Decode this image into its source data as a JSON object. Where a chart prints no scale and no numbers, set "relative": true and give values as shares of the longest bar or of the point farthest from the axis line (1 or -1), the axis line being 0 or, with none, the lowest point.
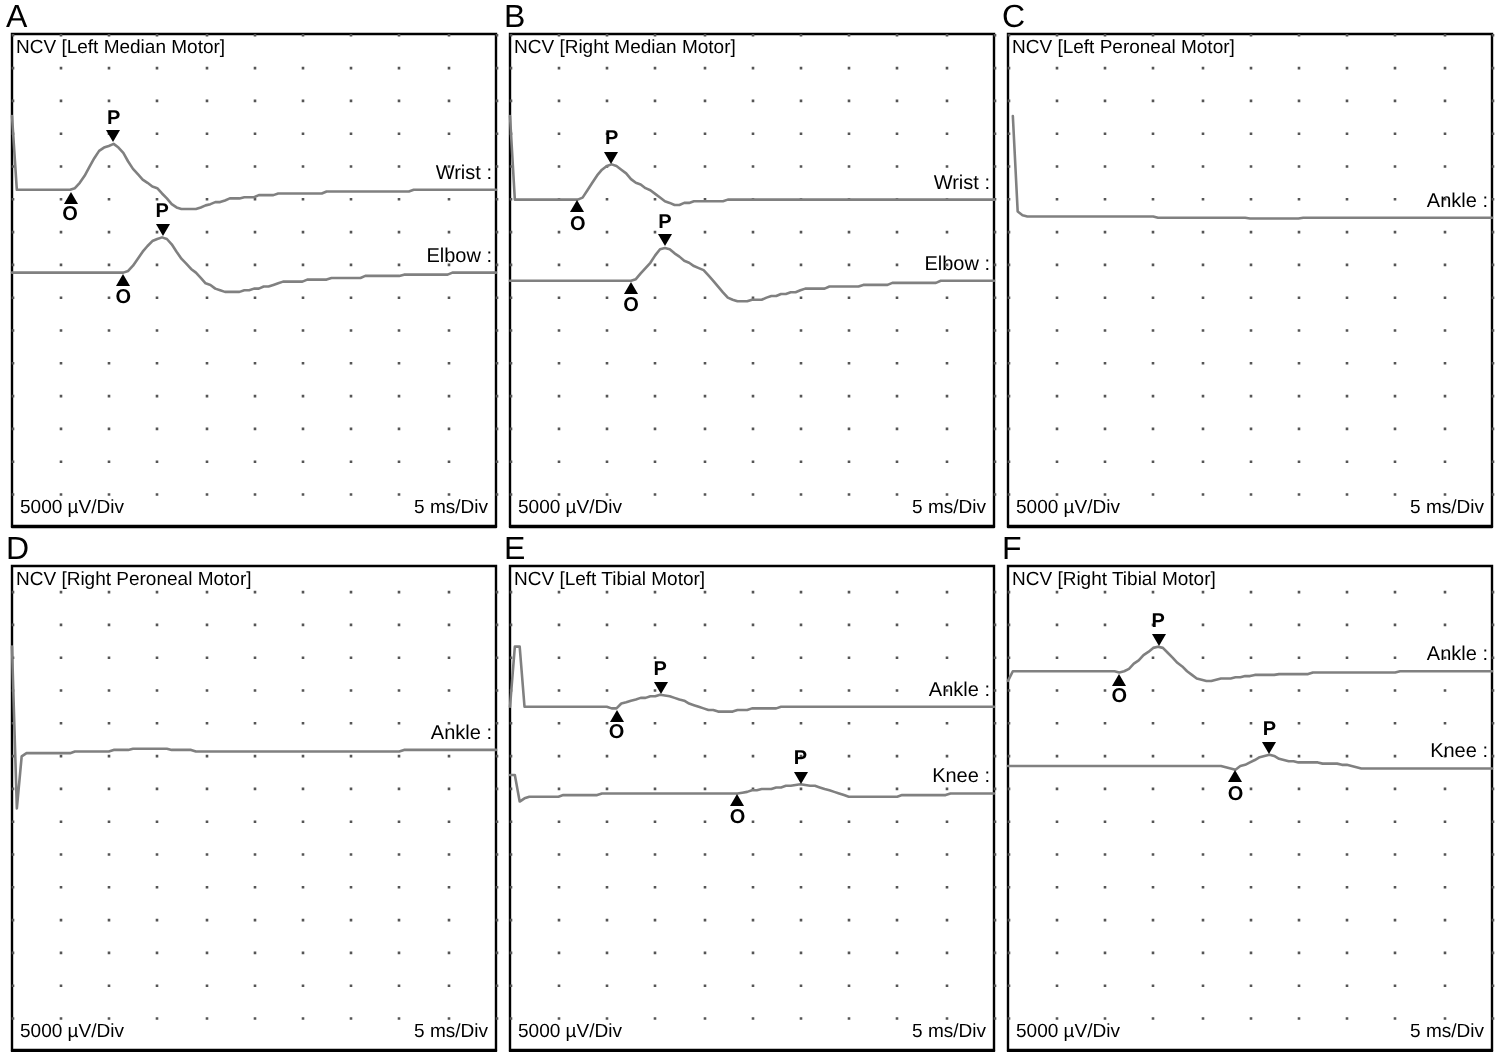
{
  "chart_data": [
    {
      "type": "line",
      "title": "A",
      "subtitle": "NCV [Left Median Motor]",
      "relative": true,
      "grid": true,
      "tick_labels": false,
      "categories": [
        null,
        null,
        null,
        null,
        null,
        null,
        null,
        null,
        null,
        null,
        null,
        null,
        null,
        null,
        null,
        null,
        null,
        null,
        null,
        null,
        null,
        null,
        null,
        null,
        null,
        null,
        null,
        null,
        null,
        null,
        null,
        null,
        null,
        null,
        null,
        null,
        null,
        null,
        null,
        null,
        null,
        null,
        null,
        null,
        null,
        null,
        null,
        null,
        null,
        null,
        null,
        null,
        null,
        null,
        null,
        null,
        null,
        null,
        null,
        null,
        null,
        null,
        null,
        null,
        null,
        null,
        null,
        null,
        null,
        null,
        null,
        null,
        null,
        null,
        null,
        null,
        null,
        null,
        null,
        null,
        null,
        null,
        null,
        null,
        null,
        null,
        null,
        null,
        null,
        null,
        null,
        null,
        null,
        null,
        null,
        null,
        null,
        null,
        null,
        null,
        null
      ],
      "series": [
        {
          "name": "Wrist :",
          "color": "#808080",
          "values": [
            1,
            0.82,
            0.82,
            0.82,
            0.82,
            0.82,
            0.82,
            0.82,
            0.82,
            0.82,
            0.82,
            0.82,
            0.82,
            0.824,
            0.837,
            0.854,
            0.876,
            0.897,
            0.915,
            0.923,
            0.927,
            0.932,
            0.923,
            0.91,
            0.889,
            0.871,
            0.858,
            0.845,
            0.837,
            0.828,
            0.824,
            0.811,
            0.799,
            0.785,
            0.777,
            0.773,
            0.773,
            0.773,
            0.773,
            0.777,
            0.782,
            0.785,
            0.79,
            0.79,
            0.794,
            0.799,
            0.799,
            0.799,
            0.802,
            0.802,
            0.802,
            0.807,
            0.807,
            0.807,
            0.807,
            0.811,
            0.811,
            0.811,
            0.811,
            0.811,
            0.811,
            0.811,
            0.811,
            0.811,
            0.811,
            0.816,
            0.816,
            0.816,
            0.816,
            0.816,
            0.816,
            0.816,
            0.816,
            0.816,
            0.816,
            0.816,
            0.816,
            0.816,
            0.816,
            0.816,
            0.816,
            0.816,
            0.816,
            0.82,
            0.82,
            0.82,
            0.82,
            0.82,
            0.82,
            0.82,
            0.82,
            0.82,
            0.82,
            0.82,
            0.82,
            0.82,
            0.82,
            0.82,
            0.82,
            0.82,
            0.82
          ]
        },
        {
          "name": "Elbow :",
          "color": "#808080",
          "values": [
            0.618,
            0.618,
            0.618,
            0.618,
            0.618,
            0.618,
            0.618,
            0.618,
            0.618,
            0.618,
            0.618,
            0.618,
            0.618,
            0.618,
            0.618,
            0.618,
            0.618,
            0.618,
            0.618,
            0.618,
            0.618,
            0.618,
            0.618,
            0.618,
            0.622,
            0.635,
            0.652,
            0.669,
            0.683,
            0.695,
            0.7,
            0.704,
            0.7,
            0.687,
            0.669,
            0.652,
            0.64,
            0.627,
            0.618,
            0.605,
            0.592,
            0.588,
            0.579,
            0.575,
            0.571,
            0.571,
            0.571,
            0.571,
            0.575,
            0.575,
            0.579,
            0.579,
            0.584,
            0.584,
            0.588,
            0.592,
            0.596,
            0.596,
            0.596,
            0.596,
            0.596,
            0.601,
            0.601,
            0.601,
            0.601,
            0.601,
            0.605,
            0.605,
            0.605,
            0.605,
            0.605,
            0.605,
            0.605,
            0.61,
            0.61,
            0.61,
            0.61,
            0.61,
            0.61,
            0.61,
            0.61,
            0.613,
            0.613,
            0.613,
            0.613,
            0.613,
            0.613,
            0.613,
            0.613,
            0.613,
            0.613,
            0.618,
            0.618,
            0.618,
            0.618,
            0.618,
            0.618,
            0.618,
            0.618,
            0.618,
            0.618
          ]
        }
      ],
      "annotations": [
        "5000 µV/Div",
        "5 ms/Div",
        {
          "text": "O",
          "y": 0.82
        },
        {
          "text": "P",
          "y": 0.932
        },
        {
          "text": "O",
          "y": 0.618
        },
        {
          "text": "P",
          "y": 0.704
        }
      ]
    },
    {
      "type": "line",
      "title": "B",
      "subtitle": "NCV [Right Median Motor]",
      "relative": true,
      "grid": true,
      "tick_labels": false,
      "categories": [
        null,
        null,
        null,
        null,
        null,
        null,
        null,
        null,
        null,
        null,
        null,
        null,
        null,
        null,
        null,
        null,
        null,
        null,
        null,
        null,
        null,
        null,
        null,
        null,
        null,
        null,
        null,
        null,
        null,
        null,
        null,
        null,
        null,
        null,
        null,
        null,
        null,
        null,
        null,
        null,
        null,
        null,
        null,
        null,
        null,
        null,
        null,
        null,
        null,
        null,
        null,
        null,
        null,
        null,
        null,
        null,
        null,
        null,
        null,
        null,
        null,
        null,
        null,
        null,
        null,
        null,
        null,
        null,
        null,
        null,
        null,
        null,
        null,
        null,
        null,
        null,
        null,
        null,
        null,
        null,
        null,
        null,
        null,
        null,
        null,
        null,
        null,
        null,
        null,
        null,
        null,
        null,
        null,
        null,
        null,
        null,
        null,
        null,
        null,
        null,
        null
      ],
      "series": [
        {
          "name": "Wrist :",
          "color": "#808080",
          "values": [
            1,
            0.796,
            0.796,
            0.796,
            0.796,
            0.796,
            0.796,
            0.796,
            0.796,
            0.796,
            0.796,
            0.796,
            0.796,
            0.796,
            0.796,
            0.801,
            0.819,
            0.837,
            0.855,
            0.869,
            0.878,
            0.882,
            0.878,
            0.869,
            0.86,
            0.846,
            0.837,
            0.833,
            0.824,
            0.819,
            0.81,
            0.801,
            0.792,
            0.788,
            0.783,
            0.783,
            0.788,
            0.788,
            0.792,
            0.792,
            0.792,
            0.792,
            0.792,
            0.792,
            0.792,
            0.796,
            0.796,
            0.796,
            0.796,
            0.796,
            0.796,
            0.796,
            0.796,
            0.796,
            0.796,
            0.796,
            0.796,
            0.796,
            0.796,
            0.796,
            0.796,
            0.796,
            0.796,
            0.796,
            0.796,
            0.796,
            0.796,
            0.796,
            0.796,
            0.796,
            0.796,
            0.796,
            0.796,
            0.796,
            0.796,
            0.796,
            0.796,
            0.796,
            0.796,
            0.796,
            0.796,
            0.796,
            0.796,
            0.796,
            0.796,
            0.796,
            0.796,
            0.796,
            0.796,
            0.796,
            0.796,
            0.796,
            0.796,
            0.796,
            0.796,
            0.796,
            0.796,
            0.796,
            0.796,
            0.796,
            0.796
          ]
        },
        {
          "name": "Elbow :",
          "color": "#808080",
          "values": [
            0.598,
            0.598,
            0.598,
            0.598,
            0.598,
            0.598,
            0.598,
            0.598,
            0.598,
            0.598,
            0.598,
            0.598,
            0.598,
            0.598,
            0.598,
            0.598,
            0.598,
            0.598,
            0.598,
            0.598,
            0.598,
            0.598,
            0.598,
            0.598,
            0.598,
            0.598,
            0.602,
            0.616,
            0.629,
            0.642,
            0.66,
            0.675,
            0.678,
            0.675,
            0.665,
            0.657,
            0.647,
            0.642,
            0.634,
            0.629,
            0.624,
            0.611,
            0.598,
            0.584,
            0.57,
            0.557,
            0.552,
            0.548,
            0.548,
            0.548,
            0.552,
            0.552,
            0.552,
            0.557,
            0.561,
            0.561,
            0.566,
            0.566,
            0.57,
            0.57,
            0.575,
            0.579,
            0.579,
            0.579,
            0.579,
            0.579,
            0.584,
            0.584,
            0.584,
            0.584,
            0.584,
            0.584,
            0.584,
            0.588,
            0.588,
            0.588,
            0.588,
            0.588,
            0.588,
            0.593,
            0.593,
            0.593,
            0.593,
            0.593,
            0.593,
            0.593,
            0.593,
            0.593,
            0.593,
            0.598,
            0.598,
            0.598,
            0.598,
            0.598,
            0.598,
            0.598,
            0.598,
            0.598,
            0.598,
            0.598,
            0.598
          ]
        }
      ],
      "annotations": [
        "5000 µV/Div",
        "5 ms/Div",
        {
          "text": "O",
          "y": 0.796
        },
        {
          "text": "P",
          "y": 0.882
        },
        {
          "text": "O",
          "y": 0.598
        },
        {
          "text": "P",
          "y": 0.678
        }
      ]
    },
    {
      "type": "line",
      "title": "C",
      "subtitle": "NCV [Left Peroneal Motor]",
      "relative": true,
      "grid": true,
      "tick_labels": false,
      "categories": [
        null,
        null,
        null,
        null,
        null,
        null,
        null,
        null,
        null,
        null,
        null,
        null,
        null,
        null,
        null,
        null,
        null,
        null,
        null,
        null,
        null,
        null,
        null,
        null,
        null,
        null,
        null,
        null,
        null,
        null,
        null,
        null,
        null,
        null,
        null,
        null,
        null,
        null,
        null,
        null,
        null,
        null,
        null,
        null,
        null,
        null,
        null,
        null,
        null,
        null,
        null,
        null,
        null,
        null,
        null,
        null,
        null,
        null,
        null,
        null,
        null,
        null,
        null,
        null,
        null,
        null,
        null,
        null,
        null,
        null,
        null,
        null,
        null,
        null,
        null,
        null,
        null,
        null,
        null,
        null,
        null,
        null,
        null,
        null,
        null,
        null,
        null,
        null,
        null,
        null,
        null,
        null,
        null,
        null,
        null,
        null,
        null,
        null,
        null,
        null,
        null
      ],
      "series": [
        {
          "name": "Ankle :",
          "color": "#808080",
          "values": [
            null,
            1,
            0.767,
            0.758,
            0.755,
            0.755,
            0.755,
            0.755,
            0.755,
            0.755,
            0.755,
            0.755,
            0.755,
            0.755,
            0.755,
            0.755,
            0.755,
            0.755,
            0.755,
            0.755,
            0.755,
            0.755,
            0.755,
            0.755,
            0.755,
            0.755,
            0.755,
            0.755,
            0.755,
            0.755,
            0.755,
            0.752,
            0.752,
            0.752,
            0.752,
            0.752,
            0.752,
            0.752,
            0.752,
            0.752,
            0.752,
            0.752,
            0.752,
            0.752,
            0.752,
            0.752,
            0.752,
            0.752,
            0.752,
            0.752,
            0.75,
            0.75,
            0.75,
            0.75,
            0.75,
            0.75,
            0.75,
            0.75,
            0.75,
            0.75,
            0.75,
            0.752,
            0.752,
            0.752,
            0.752,
            0.752,
            0.752,
            0.752,
            0.752,
            0.752,
            0.752,
            0.752,
            0.752,
            0.752,
            0.752,
            0.752,
            0.752,
            0.752,
            0.752,
            0.752,
            0.752,
            0.752,
            0.752,
            0.752,
            0.752,
            0.752,
            0.752,
            0.752,
            0.752,
            0.752,
            0.752,
            0.752,
            0.752,
            0.752,
            0.752,
            0.752,
            0.752,
            0.752,
            0.752,
            0.752,
            0.752
          ]
        }
      ],
      "annotations": [
        "5000 µV/Div",
        "5 ms/Div"
      ]
    },
    {
      "type": "line",
      "title": "D",
      "subtitle": "NCV [Right Peroneal Motor]",
      "relative": true,
      "grid": true,
      "tick_labels": false,
      "categories": [
        null,
        null,
        null,
        null,
        null,
        null,
        null,
        null,
        null,
        null,
        null,
        null,
        null,
        null,
        null,
        null,
        null,
        null,
        null,
        null,
        null,
        null,
        null,
        null,
        null,
        null,
        null,
        null,
        null,
        null,
        null,
        null,
        null,
        null,
        null,
        null,
        null,
        null,
        null,
        null,
        null,
        null,
        null,
        null,
        null,
        null,
        null,
        null,
        null,
        null,
        null,
        null,
        null,
        null,
        null,
        null,
        null,
        null,
        null,
        null,
        null,
        null,
        null,
        null,
        null,
        null,
        null,
        null,
        null,
        null,
        null,
        null,
        null,
        null,
        null,
        null,
        null,
        null,
        null,
        null,
        null,
        null,
        null,
        null,
        null,
        null,
        null,
        null,
        null,
        null,
        null,
        null,
        null,
        null,
        null,
        null,
        null,
        null,
        null,
        null,
        null
      ],
      "series": [
        {
          "name": "Ankle :",
          "color": "#808080",
          "values": [
            1,
            0.599,
            0.728,
            0.736,
            0.736,
            0.736,
            0.736,
            0.736,
            0.736,
            0.736,
            0.736,
            0.736,
            0.736,
            0.74,
            0.74,
            0.74,
            0.74,
            0.74,
            0.74,
            0.74,
            0.74,
            0.744,
            0.744,
            0.744,
            0.744,
            0.747,
            0.747,
            0.747,
            0.747,
            0.747,
            0.747,
            0.747,
            0.747,
            0.744,
            0.744,
            0.744,
            0.744,
            0.744,
            0.74,
            0.74,
            0.74,
            0.74,
            0.74,
            0.74,
            0.74,
            0.74,
            0.74,
            0.74,
            0.74,
            0.74,
            0.74,
            0.74,
            0.74,
            0.74,
            0.74,
            0.74,
            0.74,
            0.74,
            0.74,
            0.74,
            0.74,
            0.74,
            0.74,
            0.74,
            0.74,
            0.74,
            0.74,
            0.74,
            0.74,
            0.74,
            0.74,
            0.74,
            0.74,
            0.74,
            0.74,
            0.74,
            0.74,
            0.74,
            0.74,
            0.74,
            0.74,
            0.744,
            0.744,
            0.744,
            0.744,
            0.744,
            0.744,
            0.744,
            0.744,
            0.744,
            0.744,
            0.744,
            0.744,
            0.744,
            0.744,
            0.744,
            0.744,
            0.744,
            0.744,
            0.744,
            0.744
          ]
        }
      ],
      "annotations": [
        "5000 µV/Div",
        "5 ms/Div"
      ]
    },
    {
      "type": "line",
      "title": "E",
      "subtitle": "NCV [Left Tibial Motor]",
      "relative": true,
      "grid": true,
      "tick_labels": false,
      "categories": [
        null,
        null,
        null,
        null,
        null,
        null,
        null,
        null,
        null,
        null,
        null,
        null,
        null,
        null,
        null,
        null,
        null,
        null,
        null,
        null,
        null,
        null,
        null,
        null,
        null,
        null,
        null,
        null,
        null,
        null,
        null,
        null,
        null,
        null,
        null,
        null,
        null,
        null,
        null,
        null,
        null,
        null,
        null,
        null,
        null,
        null,
        null,
        null,
        null,
        null,
        null,
        null,
        null,
        null,
        null,
        null,
        null,
        null,
        null,
        null,
        null,
        null,
        null,
        null,
        null,
        null,
        null,
        null,
        null,
        null,
        null,
        null,
        null,
        null,
        null,
        null,
        null,
        null,
        null,
        null,
        null,
        null,
        null,
        null,
        null,
        null,
        null,
        null,
        null,
        null,
        null,
        null,
        null,
        null,
        null,
        null,
        null,
        null,
        null,
        null,
        null
      ],
      "series": [
        {
          "name": "Ankle :",
          "color": "#808080",
          "values": [
            0.851,
            1,
            1,
            0.851,
            0.851,
            0.851,
            0.851,
            0.851,
            0.851,
            0.851,
            0.851,
            0.851,
            0.851,
            0.851,
            0.851,
            0.851,
            0.851,
            0.851,
            0.851,
            0.851,
            0.851,
            0.847,
            0.847,
            0.859,
            0.862,
            0.866,
            0.869,
            0.873,
            0.873,
            0.877,
            0.877,
            0.881,
            0.879,
            0.877,
            0.873,
            0.869,
            0.866,
            0.859,
            0.855,
            0.851,
            0.847,
            0.843,
            0.843,
            0.839,
            0.839,
            0.839,
            0.839,
            0.843,
            0.843,
            0.843,
            0.847,
            0.847,
            0.847,
            0.847,
            0.847,
            0.847,
            0.851,
            0.851,
            0.851,
            0.851,
            0.851,
            0.851,
            0.851,
            0.851,
            0.851,
            0.851,
            0.851,
            0.851,
            0.851,
            0.851,
            0.851,
            0.851,
            0.851,
            0.851,
            0.851,
            0.851,
            0.851,
            0.851,
            0.851,
            0.851,
            0.851,
            0.851,
            0.851,
            0.851,
            0.851,
            0.851,
            0.851,
            0.851,
            0.851,
            0.851,
            0.851,
            0.851,
            0.851,
            0.851,
            0.851,
            0.851,
            0.851,
            0.851,
            0.851,
            0.851,
            0.851
          ]
        },
        {
          "name": "Knee :",
          "color": "#808080",
          "values": [
            0.682,
            0.682,
            0.616,
            0.624,
            0.628,
            0.628,
            0.628,
            0.628,
            0.628,
            0.628,
            0.628,
            0.632,
            0.632,
            0.632,
            0.632,
            0.632,
            0.632,
            0.632,
            0.632,
            0.636,
            0.636,
            0.636,
            0.636,
            0.636,
            0.636,
            0.636,
            0.636,
            0.636,
            0.636,
            0.636,
            0.636,
            0.636,
            0.636,
            0.636,
            0.636,
            0.636,
            0.636,
            0.636,
            0.636,
            0.636,
            0.636,
            0.636,
            0.636,
            0.636,
            0.636,
            0.636,
            0.636,
            0.636,
            0.638,
            0.64,
            0.644,
            0.644,
            0.647,
            0.647,
            0.647,
            0.651,
            0.651,
            0.655,
            0.655,
            0.657,
            0.659,
            0.657,
            0.655,
            0.655,
            0.651,
            0.647,
            0.644,
            0.64,
            0.636,
            0.632,
            0.628,
            0.628,
            0.628,
            0.628,
            0.628,
            0.628,
            0.628,
            0.628,
            0.628,
            0.628,
            0.628,
            0.632,
            0.632,
            0.632,
            0.632,
            0.632,
            0.632,
            0.632,
            0.632,
            0.632,
            0.632,
            0.636,
            0.636,
            0.636,
            0.636,
            0.636,
            0.636,
            0.636,
            0.636,
            0.636,
            0.636
          ]
        }
      ],
      "annotations": [
        "5000 µV/Div",
        "5 ms/Div",
        {
          "text": "O",
          "y": 0.847
        },
        {
          "text": "P",
          "y": 0.881
        },
        {
          "text": "O",
          "y": 0.636
        },
        {
          "text": "P",
          "y": 0.659
        }
      ]
    },
    {
      "type": "line",
      "title": "F",
      "subtitle": "NCV [Right Tibial Motor]",
      "relative": true,
      "grid": true,
      "tick_labels": false,
      "categories": [
        null,
        null,
        null,
        null,
        null,
        null,
        null,
        null,
        null,
        null,
        null,
        null,
        null,
        null,
        null,
        null,
        null,
        null,
        null,
        null,
        null,
        null,
        null,
        null,
        null,
        null,
        null,
        null,
        null,
        null,
        null,
        null,
        null,
        null,
        null,
        null,
        null,
        null,
        null,
        null,
        null,
        null,
        null,
        null,
        null,
        null,
        null,
        null,
        null,
        null,
        null,
        null,
        null,
        null,
        null,
        null,
        null,
        null,
        null,
        null,
        null,
        null,
        null,
        null,
        null,
        null,
        null,
        null,
        null,
        null,
        null,
        null,
        null,
        null,
        null,
        null,
        null,
        null,
        null,
        null,
        null,
        null,
        null,
        null,
        null,
        null,
        null,
        null,
        null,
        null,
        null,
        null,
        null,
        null,
        null,
        null,
        null,
        null,
        null,
        null,
        null
      ],
      "series": [
        {
          "name": "Ankle :",
          "color": "#808080",
          "values": [
            0.915,
            0.939,
            0.939,
            0.939,
            0.939,
            0.939,
            0.939,
            0.939,
            0.939,
            0.939,
            0.939,
            0.939,
            0.939,
            0.939,
            0.939,
            0.939,
            0.939,
            0.939,
            0.939,
            0.939,
            0.939,
            0.939,
            0.939,
            0.936,
            0.939,
            0.945,
            0.958,
            0.966,
            0.979,
            0.987,
            0.997,
            1,
            0.997,
            0.985,
            0.973,
            0.96,
            0.951,
            0.939,
            0.93,
            0.921,
            0.918,
            0.915,
            0.915,
            0.918,
            0.921,
            0.921,
            0.921,
            0.924,
            0.924,
            0.927,
            0.927,
            0.93,
            0.93,
            0.93,
            0.93,
            0.93,
            0.932,
            0.932,
            0.932,
            0.932,
            0.932,
            0.932,
            0.932,
            0.936,
            0.936,
            0.936,
            0.936,
            0.936,
            0.936,
            0.936,
            0.936,
            0.936,
            0.936,
            0.936,
            0.936,
            0.936,
            0.936,
            0.936,
            0.936,
            0.936,
            0.936,
            0.939,
            0.939,
            0.939,
            0.939,
            0.939,
            0.939,
            0.939,
            0.939,
            0.939,
            0.939,
            0.939,
            0.939,
            0.939,
            0.939,
            0.939,
            0.939,
            0.939,
            0.939,
            0.939,
            0.939
          ]
        },
        {
          "name": "Knee :",
          "color": "#808080",
          "values": [
            0.704,
            0.704,
            0.704,
            0.704,
            0.704,
            0.704,
            0.704,
            0.704,
            0.704,
            0.704,
            0.704,
            0.704,
            0.704,
            0.704,
            0.704,
            0.704,
            0.704,
            0.704,
            0.704,
            0.704,
            0.704,
            0.704,
            0.704,
            0.704,
            0.704,
            0.704,
            0.704,
            0.704,
            0.704,
            0.704,
            0.704,
            0.704,
            0.704,
            0.704,
            0.704,
            0.704,
            0.704,
            0.704,
            0.704,
            0.704,
            0.704,
            0.704,
            0.704,
            0.704,
            0.704,
            0.701,
            0.698,
            0.695,
            0.704,
            0.707,
            0.713,
            0.719,
            0.726,
            0.729,
            0.732,
            0.729,
            0.722,
            0.719,
            0.716,
            0.716,
            0.713,
            0.713,
            0.713,
            0.713,
            0.713,
            0.71,
            0.71,
            0.71,
            0.71,
            0.707,
            0.707,
            0.704,
            0.701,
            0.698,
            0.698,
            0.698,
            0.698,
            0.698,
            0.698,
            0.698,
            0.698,
            0.698,
            0.698,
            0.698,
            0.698,
            0.698,
            0.698,
            0.698,
            0.698,
            0.698,
            0.698,
            0.698,
            0.698,
            0.698,
            0.698,
            0.698,
            0.698,
            0.698,
            0.698,
            0.698,
            0.698
          ]
        }
      ],
      "annotations": [
        "5000 µV/Div",
        "5 ms/Div",
        {
          "text": "O",
          "y": 0.936
        },
        {
          "text": "P",
          "y": 1
        },
        {
          "text": "O",
          "y": 0.695
        },
        {
          "text": "P",
          "y": 0.732
        }
      ]
    }
  ]
}
